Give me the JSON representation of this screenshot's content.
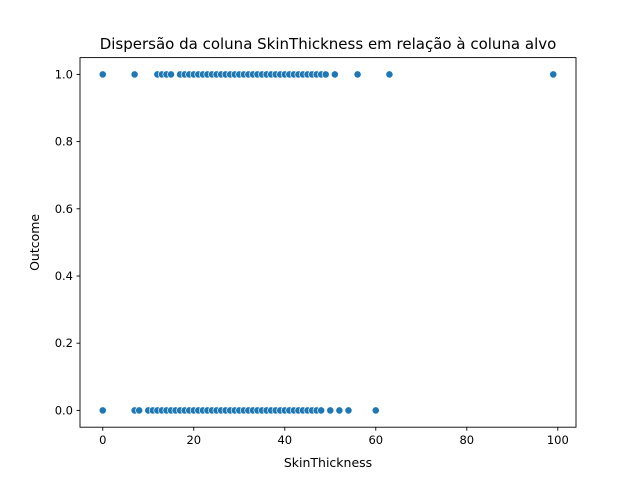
{
  "chart_data": {
    "type": "scatter",
    "title": "Dispersão da coluna SkinThickness em relação à coluna alvo",
    "xlabel": "SkinThickness",
    "ylabel": "Outcome",
    "xlim": [
      -5,
      104
    ],
    "ylim": [
      -0.05,
      1.05
    ],
    "xticks": [
      0,
      20,
      40,
      60,
      80,
      100
    ],
    "yticks": [
      0.0,
      0.2,
      0.4,
      0.6,
      0.8,
      1.0
    ],
    "xtick_labels": [
      "0",
      "20",
      "40",
      "60",
      "80",
      "100"
    ],
    "ytick_labels": [
      "0.0",
      "0.2",
      "0.4",
      "0.6",
      "0.8",
      "1.0"
    ],
    "grid": false,
    "marker_color": "#1f77b4",
    "series": [
      {
        "x": [
          0,
          7,
          12,
          13,
          14,
          15,
          17,
          18,
          19,
          20,
          21,
          22,
          23,
          24,
          25,
          26,
          27,
          28,
          29,
          30,
          31,
          32,
          33,
          34,
          35,
          36,
          37,
          38,
          39,
          40,
          41,
          42,
          43,
          44,
          45,
          46,
          47,
          48,
          49,
          51,
          56,
          63,
          99
        ],
        "y": [
          1,
          1,
          1,
          1,
          1,
          1,
          1,
          1,
          1,
          1,
          1,
          1,
          1,
          1,
          1,
          1,
          1,
          1,
          1,
          1,
          1,
          1,
          1,
          1,
          1,
          1,
          1,
          1,
          1,
          1,
          1,
          1,
          1,
          1,
          1,
          1,
          1,
          1,
          1,
          1,
          1,
          1,
          1
        ]
      },
      {
        "x": [
          0,
          7,
          8,
          10,
          11,
          12,
          13,
          14,
          15,
          16,
          17,
          18,
          19,
          20,
          21,
          22,
          23,
          24,
          25,
          26,
          27,
          28,
          29,
          30,
          31,
          32,
          33,
          34,
          35,
          36,
          37,
          38,
          39,
          40,
          41,
          42,
          43,
          44,
          45,
          46,
          47,
          48,
          50,
          52,
          54,
          60
        ],
        "y": [
          0,
          0,
          0,
          0,
          0,
          0,
          0,
          0,
          0,
          0,
          0,
          0,
          0,
          0,
          0,
          0,
          0,
          0,
          0,
          0,
          0,
          0,
          0,
          0,
          0,
          0,
          0,
          0,
          0,
          0,
          0,
          0,
          0,
          0,
          0,
          0,
          0,
          0,
          0,
          0,
          0,
          0,
          0,
          0,
          0,
          0
        ]
      }
    ]
  }
}
